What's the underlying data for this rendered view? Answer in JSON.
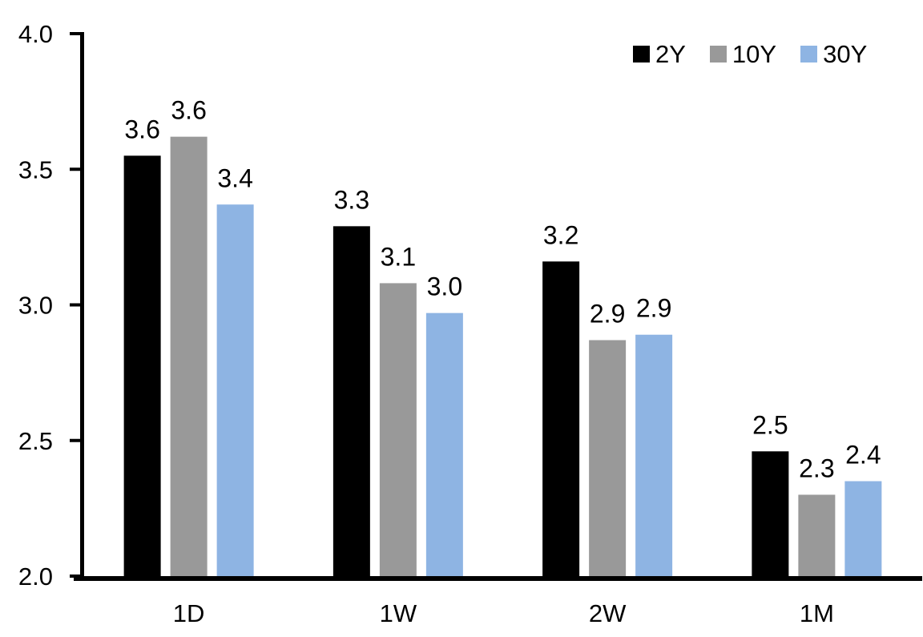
{
  "chart_data": {
    "type": "bar",
    "categories": [
      "1D",
      "1W",
      "2W",
      "1M"
    ],
    "series": [
      {
        "name": "2Y",
        "color": "#000000",
        "values": [
          3.55,
          3.29,
          3.16,
          2.46
        ],
        "labels": [
          "3.6",
          "3.3",
          "3.2",
          "2.5"
        ]
      },
      {
        "name": "10Y",
        "color": "#999999",
        "values": [
          3.62,
          3.08,
          2.87,
          2.3
        ],
        "labels": [
          "3.6",
          "3.1",
          "2.9",
          "2.3"
        ]
      },
      {
        "name": "30Y",
        "color": "#8EB4E3",
        "values": [
          3.37,
          2.97,
          2.89,
          2.35
        ],
        "labels": [
          "3.4",
          "3.0",
          "2.9",
          "2.4"
        ]
      }
    ],
    "ylim": [
      2.0,
      4.0
    ],
    "yticks": [
      {
        "value": 2.0,
        "label": "2.0"
      },
      {
        "value": 2.5,
        "label": "2.5"
      },
      {
        "value": 3.0,
        "label": "3.0"
      },
      {
        "value": 3.5,
        "label": "3.5"
      },
      {
        "value": 4.0,
        "label": "4.0"
      }
    ],
    "xlabel": "",
    "ylabel": "",
    "grid": false,
    "legend_position": "top-right",
    "axis_color": "#000000",
    "text_color": "#000000",
    "background_color": "#ffffff"
  }
}
